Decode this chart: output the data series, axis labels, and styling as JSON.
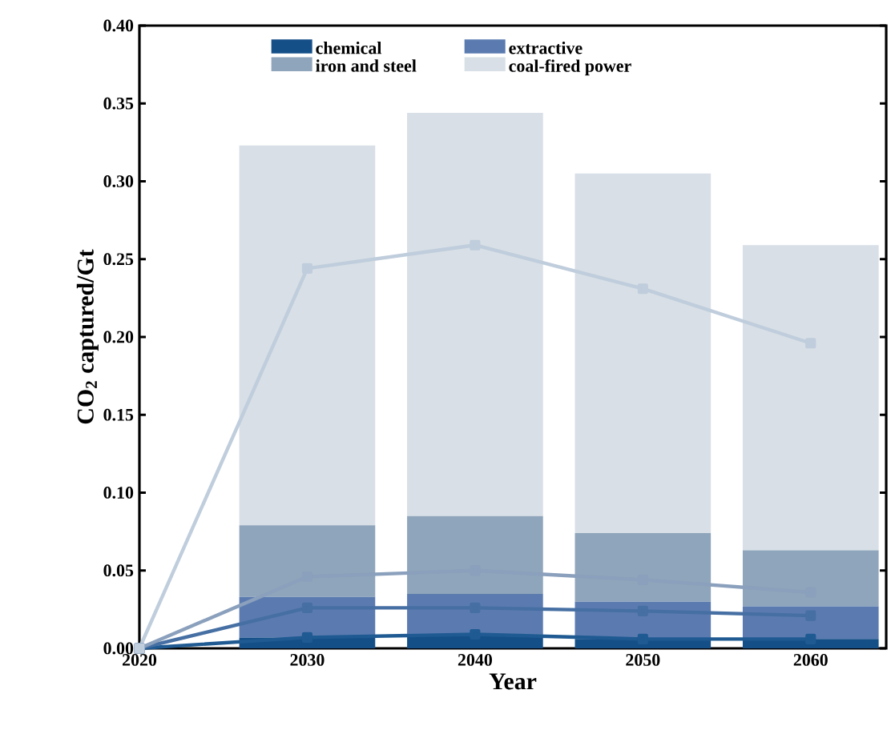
{
  "chart_data": {
    "type": "bar",
    "stacked": true,
    "xlabel": "Year",
    "ylabel": "CO$_{2}$ captured/Gt",
    "xlim": [
      2020,
      2064.5
    ],
    "ylim": [
      0,
      0.4
    ],
    "xticks": [
      2020,
      2030,
      2040,
      2050,
      2060
    ],
    "yticks": [
      {
        "value": 0,
        "label": "0.00"
      },
      {
        "value": 0.05,
        "label": "0.05"
      },
      {
        "value": 0.1,
        "label": "0.10"
      },
      {
        "value": 0.15,
        "label": "0.15"
      },
      {
        "value": 0.2,
        "label": "0.20"
      },
      {
        "value": 0.25,
        "label": "0.25"
      },
      {
        "value": 0.3,
        "label": "0.30"
      },
      {
        "value": 0.35,
        "label": "0.35"
      },
      {
        "value": 0.4,
        "label": "0.40"
      }
    ],
    "grid": false,
    "legend": "top",
    "series": [
      {
        "name": "chemical",
        "color": "#154f88",
        "x": [
          2030,
          2040,
          2050,
          2060
        ],
        "values": [
          0.007,
          0.009,
          0.006,
          0.006
        ]
      },
      {
        "name": "extractive",
        "color": "#5b7bb0",
        "x": [
          2030,
          2040,
          2050,
          2060
        ],
        "values": [
          0.026,
          0.026,
          0.024,
          0.021
        ]
      },
      {
        "name": "iron and steel",
        "color": "#8fa5bb",
        "x": [
          2030,
          2040,
          2050,
          2060
        ],
        "values": [
          0.046,
          0.05,
          0.044,
          0.036
        ]
      },
      {
        "name": "coal-fired power",
        "color": "#d8dfe6",
        "x": [
          2030,
          2040,
          2050,
          2060
        ],
        "values": [
          0.244,
          0.259,
          0.231,
          0.196
        ]
      },
      {
        "type": "line",
        "color": "#1f5a92",
        "marker": "square",
        "x": [
          2020,
          2030,
          2040,
          2050,
          2060
        ],
        "values": [
          0,
          0.007,
          0.009,
          0.006,
          0.006
        ]
      },
      {
        "type": "line",
        "color": "#466fa3",
        "marker": "square",
        "x": [
          2020,
          2030,
          2040,
          2050,
          2060
        ],
        "values": [
          0,
          0.026,
          0.026,
          0.024,
          0.021
        ]
      },
      {
        "type": "line",
        "color": "#8aa0bc",
        "marker": "square",
        "x": [
          2020,
          2030,
          2040,
          2050,
          2060
        ],
        "values": [
          0,
          0.046,
          0.05,
          0.044,
          0.036
        ]
      },
      {
        "type": "line",
        "color": "#bfcddc",
        "marker": "square",
        "x": [
          2020,
          2030,
          2040,
          2050,
          2060
        ],
        "values": [
          0,
          0.244,
          0.259,
          0.231,
          0.196
        ]
      }
    ]
  }
}
